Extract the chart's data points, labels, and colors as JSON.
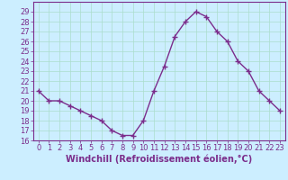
{
  "x": [
    0,
    1,
    2,
    3,
    4,
    5,
    6,
    7,
    8,
    9,
    10,
    11,
    12,
    13,
    14,
    15,
    16,
    17,
    18,
    19,
    20,
    21,
    22,
    23
  ],
  "y": [
    21,
    20,
    20,
    19.5,
    19,
    18.5,
    18,
    17,
    16.5,
    16.5,
    18,
    21,
    23.5,
    26.5,
    28,
    29,
    28.5,
    27,
    26,
    24,
    23,
    21,
    20,
    19
  ],
  "line_color": "#7b2d8b",
  "marker": "+",
  "markersize": 4,
  "linewidth": 1.0,
  "background_color": "#cceeff",
  "grid_color": "#aaddcc",
  "xlabel": "Windchill (Refroidissement éolien,°C)",
  "xlabel_fontsize": 7,
  "tick_color": "#7b2d8b",
  "tick_fontsize": 6,
  "ylim": [
    16,
    30
  ],
  "xlim": [
    -0.5,
    23.5
  ],
  "yticks": [
    16,
    17,
    18,
    19,
    20,
    21,
    22,
    23,
    24,
    25,
    26,
    27,
    28,
    29
  ],
  "xticks": [
    0,
    1,
    2,
    3,
    4,
    5,
    6,
    7,
    8,
    9,
    10,
    11,
    12,
    13,
    14,
    15,
    16,
    17,
    18,
    19,
    20,
    21,
    22,
    23
  ]
}
